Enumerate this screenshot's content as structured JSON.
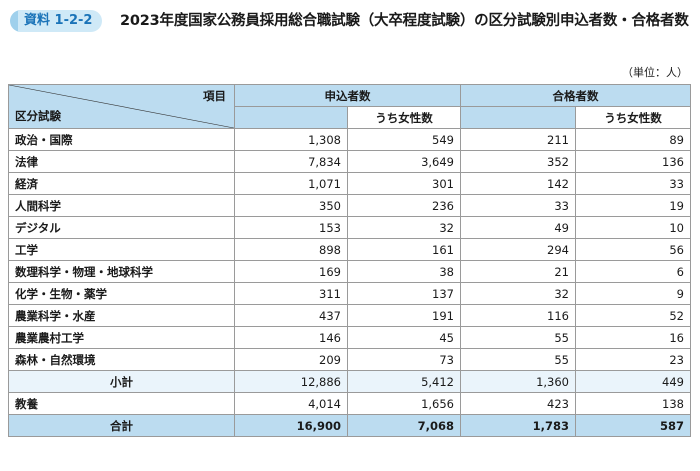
{
  "header": {
    "badge": "資料 1-2-2",
    "title": "2023年度国家公務員採用総合職試験（大卒程度試験）の区分試験別申込者数・合格者数",
    "unit": "（単位：人）"
  },
  "table": {
    "corner_item": "項目",
    "corner_category": "区分試験",
    "col_applicants": "申込者数",
    "col_passed": "合格者数",
    "col_women": "うち女性数",
    "rows": [
      {
        "label": "政治・国際",
        "app": "1,308",
        "app_w": "549",
        "pass": "211",
        "pass_w": "89"
      },
      {
        "label": "法律",
        "app": "7,834",
        "app_w": "3,649",
        "pass": "352",
        "pass_w": "136"
      },
      {
        "label": "経済",
        "app": "1,071",
        "app_w": "301",
        "pass": "142",
        "pass_w": "33"
      },
      {
        "label": "人間科学",
        "app": "350",
        "app_w": "236",
        "pass": "33",
        "pass_w": "19"
      },
      {
        "label": "デジタル",
        "app": "153",
        "app_w": "32",
        "pass": "49",
        "pass_w": "10"
      },
      {
        "label": "工学",
        "app": "898",
        "app_w": "161",
        "pass": "294",
        "pass_w": "56"
      },
      {
        "label": "数理科学・物理・地球科学",
        "app": "169",
        "app_w": "38",
        "pass": "21",
        "pass_w": "6"
      },
      {
        "label": "化学・生物・薬学",
        "app": "311",
        "app_w": "137",
        "pass": "32",
        "pass_w": "9"
      },
      {
        "label": "農業科学・水産",
        "app": "437",
        "app_w": "191",
        "pass": "116",
        "pass_w": "52"
      },
      {
        "label": "農業農村工学",
        "app": "146",
        "app_w": "45",
        "pass": "55",
        "pass_w": "16"
      },
      {
        "label": "森林・自然環境",
        "app": "209",
        "app_w": "73",
        "pass": "55",
        "pass_w": "23"
      }
    ],
    "subtotal": {
      "label": "小計",
      "app": "12,886",
      "app_w": "5,412",
      "pass": "1,360",
      "pass_w": "449"
    },
    "kyoyo": {
      "label": "教養",
      "app": "4,014",
      "app_w": "1,656",
      "pass": "423",
      "pass_w": "138"
    },
    "total": {
      "label": "合計",
      "app": "16,900",
      "app_w": "7,068",
      "pass": "1,783",
      "pass_w": "587"
    }
  }
}
